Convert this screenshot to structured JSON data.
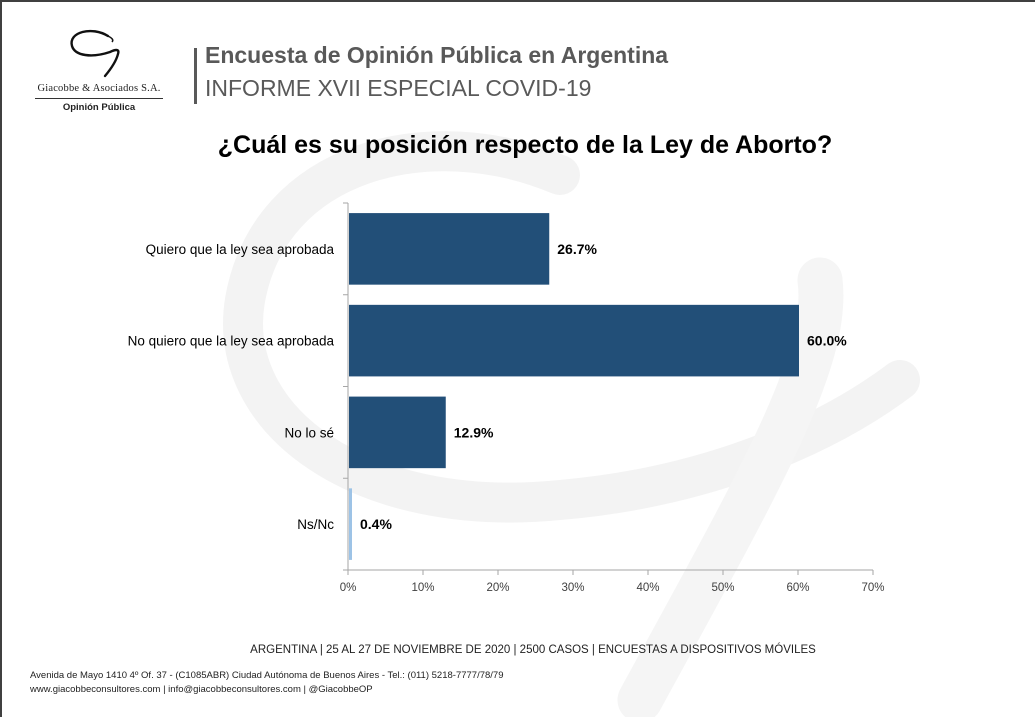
{
  "header": {
    "firm_name": "Giacobbe & Asociados S.A.",
    "firm_tagline": "Opinión Pública",
    "title": "Encuesta de Opinión Pública en Argentina",
    "subtitle": "INFORME XVII ESPECIAL COVID-19"
  },
  "colors": {
    "bar_primary": "#224f78",
    "bar_highlight": "#9dc3e6",
    "header_text": "#595959"
  },
  "chart_data": {
    "type": "bar",
    "orientation": "horizontal",
    "title": "¿Cuál es su posición respecto de la Ley de Aborto?",
    "categories": [
      "Quiero que la ley sea aprobada",
      "No quiero que la ley sea aprobada",
      "No lo sé",
      "Ns/Nc"
    ],
    "values": [
      26.7,
      60.0,
      12.9,
      0.4
    ],
    "value_labels": [
      "26.7%",
      "60.0%",
      "12.9%",
      "0.4%"
    ],
    "xlabel": "",
    "ylabel": "",
    "xlim": [
      0,
      70
    ],
    "x_ticks": [
      0,
      10,
      20,
      30,
      40,
      50,
      60,
      70
    ],
    "x_tick_labels": [
      "0%",
      "10%",
      "20%",
      "30%",
      "40%",
      "50%",
      "60%",
      "70%"
    ],
    "grid": false,
    "legend": "none"
  },
  "footer": {
    "methodology": "ARGENTINA | 25 AL 27 DE NOVIEMBRE DE 2020 | 2500 CASOS | ENCUESTAS A DISPOSITIVOS MÓVILES",
    "address": "Avenida de Mayo 1410 4º Of. 37 - (C1085ABR) Ciudad Autónoma de Buenos Aires - Tel.: (011) 5218-7777/78/79",
    "contact": "www.giacobbeconsultores.com | info@giacobbeconsultores.com | @GiacobbeOP"
  }
}
